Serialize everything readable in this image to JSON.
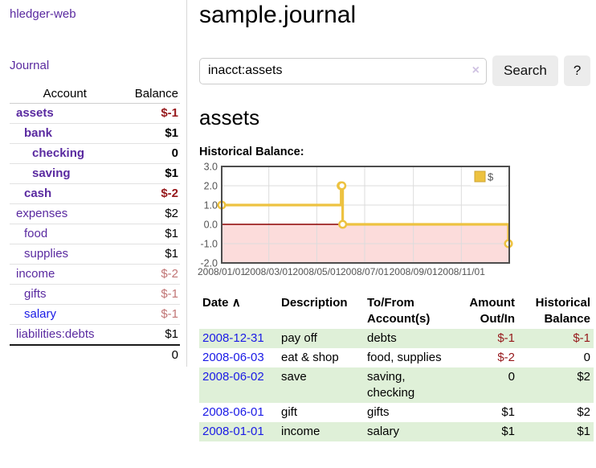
{
  "theme": {
    "link_purple": "#5a2aa0",
    "link_blue": "#1a1ae6",
    "negative_strong": "#96181b",
    "negative_faded": "#c17575",
    "row_highlight": "#dff0d8",
    "button_bg": "#ececec"
  },
  "sidebar": {
    "app_title": "hledger-web",
    "journal_link": "Journal",
    "accounts": {
      "col_account": "Account",
      "col_balance": "Balance",
      "rows": [
        {
          "name": "assets",
          "depth": 0,
          "bold": true,
          "name_color": "#5a2aa0",
          "balance": "$-1",
          "balance_color": "#96181b"
        },
        {
          "name": "bank",
          "depth": 1,
          "bold": true,
          "name_color": "#5a2aa0",
          "balance": "$1",
          "balance_color": "#000000"
        },
        {
          "name": "checking",
          "depth": 2,
          "bold": true,
          "name_color": "#5a2aa0",
          "balance": "0",
          "balance_color": "#000000"
        },
        {
          "name": "saving",
          "depth": 2,
          "bold": true,
          "name_color": "#5a2aa0",
          "balance": "$1",
          "balance_color": "#000000"
        },
        {
          "name": "cash",
          "depth": 1,
          "bold": true,
          "name_color": "#5a2aa0",
          "balance": "$-2",
          "balance_color": "#96181b"
        },
        {
          "name": "expenses",
          "depth": 0,
          "bold": false,
          "name_color": "#5a2aa0",
          "balance": "$2",
          "balance_color": "#000000"
        },
        {
          "name": "food",
          "depth": 1,
          "bold": false,
          "name_color": "#5a2aa0",
          "balance": "$1",
          "balance_color": "#000000"
        },
        {
          "name": "supplies",
          "depth": 1,
          "bold": false,
          "name_color": "#5a2aa0",
          "balance": "$1",
          "balance_color": "#000000"
        },
        {
          "name": "income",
          "depth": 0,
          "bold": false,
          "name_color": "#5a2aa0",
          "balance": "$-2",
          "balance_color": "#c17575"
        },
        {
          "name": "gifts",
          "depth": 1,
          "bold": false,
          "name_color": "#5a2aa0",
          "balance": "$-1",
          "balance_color": "#c17575"
        },
        {
          "name": "salary",
          "depth": 1,
          "bold": false,
          "name_color": "#1a1ae6",
          "balance": "$-1",
          "balance_color": "#c17575"
        },
        {
          "name": "liabilities:debts",
          "depth": 0,
          "bold": false,
          "name_color": "#5a2aa0",
          "balance": "$1",
          "balance_color": "#000000"
        }
      ],
      "total": "0"
    }
  },
  "header": {
    "title": "sample.journal"
  },
  "search": {
    "value": "inacct:assets",
    "clear_icon": "×",
    "search_label": "Search",
    "help_label": "?"
  },
  "account_page": {
    "heading": "assets",
    "chart_heading": "Historical Balance:"
  },
  "chart_data": {
    "type": "line",
    "title": "Historical Balance",
    "legend": {
      "label": "$",
      "position": "top-right"
    },
    "series": [
      {
        "name": "$",
        "color": "#edc240",
        "marker_fill": "#ffffff",
        "points": [
          [
            "2008-01-01",
            1
          ],
          [
            "2008-06-01",
            2
          ],
          [
            "2008-06-02",
            2
          ],
          [
            "2008-06-03",
            0
          ],
          [
            "2008-12-31",
            -1
          ]
        ]
      }
    ],
    "xlim": [
      "2008-01-01",
      "2009-01-01"
    ],
    "ylim": [
      -2,
      3
    ],
    "x_tick_labels": [
      "2008/01/01",
      "2008/03/01",
      "2008/05/01",
      "2008/07/01",
      "2008/09/01",
      "2008/11/01"
    ],
    "y_tick_labels": [
      "3.0",
      "2.0",
      "1.0",
      "0.0",
      "-1.0",
      "-2.0"
    ],
    "grid": true,
    "negative_region_color": "#fcdcdb",
    "zero_line_color": "#8b0000",
    "border_color": "#4d4d4d",
    "grid_color": "#dcdcdc",
    "tick_color": "#545454"
  },
  "register": {
    "date_link_color": "#1a1ae6",
    "columns": {
      "col_date": "Date",
      "sort_icon": "∧",
      "col_description": "Description",
      "col_accounts": "To/From Account(s)",
      "col_amount": "Amount Out/In",
      "col_balance": "Historical Balance"
    },
    "rows": [
      {
        "date": "2008-12-31",
        "description": "pay off",
        "accounts": "debts",
        "amount": "$-1",
        "amount_color": "#96181b",
        "balance": "$-1",
        "balance_color": "#96181b",
        "highlight": true
      },
      {
        "date": "2008-06-03",
        "description": "eat & shop",
        "accounts": "food, supplies",
        "amount": "$-2",
        "amount_color": "#96181b",
        "balance": "0",
        "balance_color": "#000000",
        "highlight": false
      },
      {
        "date": "2008-06-02",
        "description": "save",
        "accounts": "saving, checking",
        "amount": "0",
        "amount_color": "#000000",
        "balance": "$2",
        "balance_color": "#000000",
        "highlight": true
      },
      {
        "date": "2008-06-01",
        "description": "gift",
        "accounts": "gifts",
        "amount": "$1",
        "amount_color": "#000000",
        "balance": "$2",
        "balance_color": "#000000",
        "highlight": false
      },
      {
        "date": "2008-01-01",
        "description": "income",
        "accounts": "salary",
        "amount": "$1",
        "amount_color": "#000000",
        "balance": "$1",
        "balance_color": "#000000",
        "highlight": true
      }
    ]
  }
}
